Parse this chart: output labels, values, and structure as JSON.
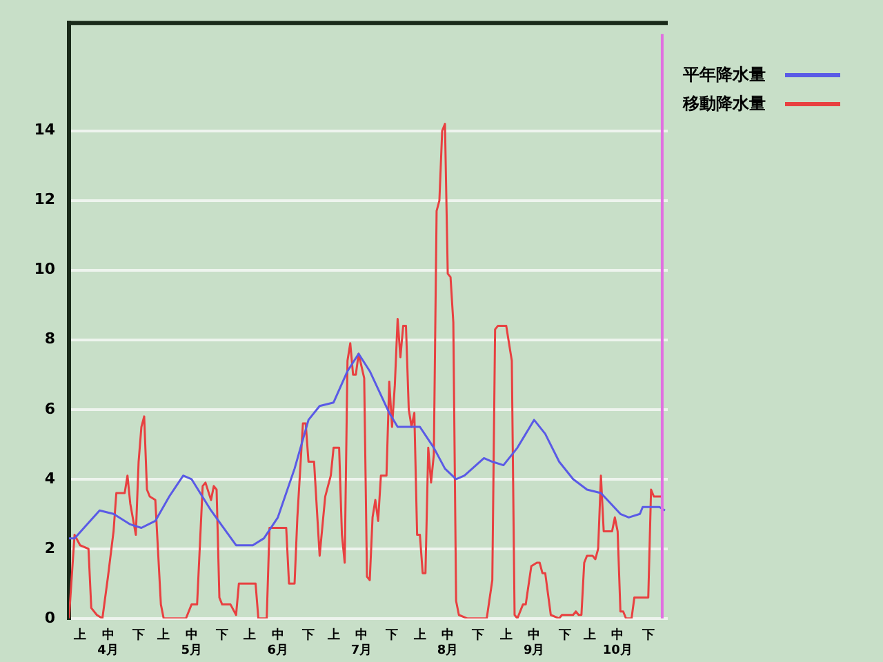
{
  "chart_data": {
    "type": "line",
    "xlim": [
      "--04-01",
      "--11-02"
    ],
    "xticks": [
      {
        "value": "--04-05",
        "label": "上"
      },
      {
        "value": "--04-15",
        "label": "中\n4月"
      },
      {
        "value": "--04-26",
        "label": "下"
      },
      {
        "value": "--05-05",
        "label": "上"
      },
      {
        "value": "--05-15",
        "label": "中\n5月"
      },
      {
        "value": "--05-26",
        "label": "下"
      },
      {
        "value": "--06-05",
        "label": "上"
      },
      {
        "value": "--06-15",
        "label": "中\n6月"
      },
      {
        "value": "--06-26",
        "label": "下"
      },
      {
        "value": "--07-05",
        "label": "上"
      },
      {
        "value": "--07-15",
        "label": "中\n7月"
      },
      {
        "value": "--07-26",
        "label": "下"
      },
      {
        "value": "--08-05",
        "label": "上"
      },
      {
        "value": "--08-15",
        "label": "中\n8月"
      },
      {
        "value": "--08-26",
        "label": "下"
      },
      {
        "value": "--09-05",
        "label": "上"
      },
      {
        "value": "--09-15",
        "label": "中\n9月"
      },
      {
        "value": "--09-26",
        "label": "下"
      },
      {
        "value": "--10-05",
        "label": "上"
      },
      {
        "value": "--10-15",
        "label": "中\n10月"
      },
      {
        "value": "--10-26",
        "label": "下"
      }
    ],
    "ylim": [
      0,
      17.1
    ],
    "yticks": [
      0,
      2,
      4,
      6,
      8,
      10,
      12,
      14
    ],
    "grid": "y",
    "legend": "top right",
    "marker": "none",
    "ref_lines": [
      {
        "axis": "x",
        "value": "--10-31",
        "color": "#e070e0"
      }
    ],
    "series": [
      {
        "name": "平年降水量",
        "color": "#5a5ae6",
        "x": [
          "--04-01",
          "--04-03",
          "--04-12",
          "--04-17",
          "--04-23",
          "--04-27",
          "--05-02",
          "--05-07",
          "--05-12",
          "--05-15",
          "--05-22",
          "--05-31",
          "--06-06",
          "--06-10",
          "--06-15",
          "--06-21",
          "--06-26",
          "--06-30",
          "--07-05",
          "--07-10",
          "--07-14",
          "--07-18",
          "--07-25",
          "--07-28",
          "--08-05",
          "--08-10",
          "--08-14",
          "--08-18",
          "--08-21",
          "--08-28",
          "--08-31",
          "--09-04",
          "--09-09",
          "--09-15",
          "--09-19",
          "--09-24",
          "--09-29",
          "--10-04",
          "--10-09",
          "--10-16",
          "--10-19",
          "--10-23",
          "--10-24",
          "--10-30",
          "--11-01"
        ],
        "values": [
          2.3,
          2.3,
          3.1,
          3.0,
          2.7,
          2.6,
          2.8,
          3.5,
          4.1,
          4.0,
          3.1,
          2.1,
          2.1,
          2.3,
          2.9,
          4.3,
          5.7,
          6.1,
          6.2,
          7.1,
          7.6,
          7.1,
          5.9,
          5.5,
          5.5,
          4.9,
          4.3,
          4.0,
          4.1,
          4.6,
          4.5,
          4.4,
          4.9,
          5.7,
          5.3,
          4.5,
          4.0,
          3.7,
          3.6,
          3.0,
          2.9,
          3.0,
          3.2,
          3.2,
          3.1
        ]
      },
      {
        "name": "移動降水量",
        "color": "#e84040",
        "x": [
          "--04-01",
          "--04-03",
          "--04-05",
          "--04-08",
          "--04-09",
          "--04-11",
          "--04-13",
          "--04-15",
          "--04-17",
          "--04-18",
          "--04-21",
          "--04-22",
          "--04-23",
          "--04-25",
          "--04-26",
          "--04-27",
          "--04-28",
          "--04-29",
          "--04-30",
          "--05-02",
          "--05-04",
          "--05-05",
          "--05-13",
          "--05-15",
          "--05-17",
          "--05-19",
          "--05-20",
          "--05-22",
          "--05-23",
          "--05-24",
          "--05-25",
          "--05-26",
          "--05-29",
          "--05-31",
          "--06-01",
          "--06-07",
          "--06-08",
          "--06-11",
          "--06-12",
          "--06-14",
          "--06-16",
          "--06-18",
          "--06-19",
          "--06-21",
          "--06-22",
          "--06-24",
          "--06-25",
          "--06-26",
          "--06-28",
          "--06-30",
          "--07-02",
          "--07-04",
          "--07-05",
          "--07-07",
          "--07-08",
          "--07-09",
          "--07-10",
          "--07-11",
          "--07-12",
          "--07-13",
          "--07-14",
          "--07-16",
          "--07-17",
          "--07-18",
          "--07-19",
          "--07-20",
          "--07-21",
          "--07-22",
          "--07-24",
          "--07-25",
          "--07-26",
          "--07-27",
          "--07-28",
          "--07-29",
          "--07-30",
          "--07-31",
          "--08-01",
          "--08-02",
          "--08-03",
          "--08-04",
          "--08-05",
          "--08-06",
          "--08-07",
          "--08-08",
          "--08-09",
          "--08-10",
          "--08-11",
          "--08-12",
          "--08-13",
          "--08-14",
          "--08-15",
          "--08-16",
          "--08-17",
          "--08-18",
          "--08-19",
          "--08-22",
          "--08-29",
          "--08-31",
          "--09-01",
          "--09-02",
          "--09-05",
          "--09-07",
          "--09-08",
          "--09-09",
          "--09-11",
          "--09-12",
          "--09-14",
          "--09-16",
          "--09-17",
          "--09-18",
          "--09-19",
          "--09-21",
          "--09-24",
          "--09-25",
          "--09-29",
          "--09-30",
          "--10-01",
          "--10-02",
          "--10-03",
          "--10-04",
          "--10-06",
          "--10-07",
          "--10-08",
          "--10-09",
          "--10-10",
          "--10-13",
          "--10-14",
          "--10-15",
          "--10-16",
          "--10-17",
          "--10-18",
          "--10-20",
          "--10-21",
          "--10-26",
          "--10-27",
          "--10-28",
          "--10-31"
        ],
        "values": [
          0,
          2.4,
          2.1,
          2.0,
          0.3,
          0.1,
          0,
          1.2,
          2.5,
          3.6,
          3.6,
          4.1,
          3.3,
          2.4,
          4.5,
          5.5,
          5.8,
          3.7,
          3.5,
          3.4,
          0.4,
          0,
          0,
          0.4,
          0.4,
          3.8,
          3.9,
          3.4,
          3.8,
          3.7,
          0.6,
          0.4,
          0.4,
          0.1,
          1.0,
          1.0,
          0,
          0,
          2.6,
          2.6,
          2.6,
          2.6,
          1.0,
          1.0,
          2.9,
          5.6,
          5.6,
          4.5,
          4.5,
          1.8,
          3.5,
          4.1,
          4.9,
          4.9,
          2.4,
          1.6,
          7.4,
          7.9,
          7.0,
          7.0,
          7.6,
          6.9,
          1.2,
          1.1,
          2.9,
          3.4,
          2.8,
          4.1,
          4.1,
          6.8,
          5.5,
          6.7,
          8.6,
          7.5,
          8.4,
          8.4,
          6.0,
          5.5,
          5.9,
          2.4,
          2.4,
          1.3,
          1.3,
          4.9,
          3.9,
          4.7,
          11.7,
          12.0,
          14.0,
          14.2,
          9.9,
          9.8,
          8.5,
          0.5,
          0.1,
          0,
          0,
          1.1,
          8.3,
          8.4,
          8.4,
          7.4,
          0.1,
          0,
          0.4,
          0.4,
          1.5,
          1.6,
          1.6,
          1.3,
          1.3,
          0.1,
          0,
          0.1,
          0.1,
          0.2,
          0.1,
          0.1,
          1.6,
          1.8,
          1.8,
          1.7,
          2.0,
          4.1,
          2.5,
          2.5,
          2.9,
          2.5,
          0.2,
          0.2,
          0,
          0,
          0.6,
          0.6,
          3.7,
          3.5,
          3.5
        ]
      }
    ]
  }
}
